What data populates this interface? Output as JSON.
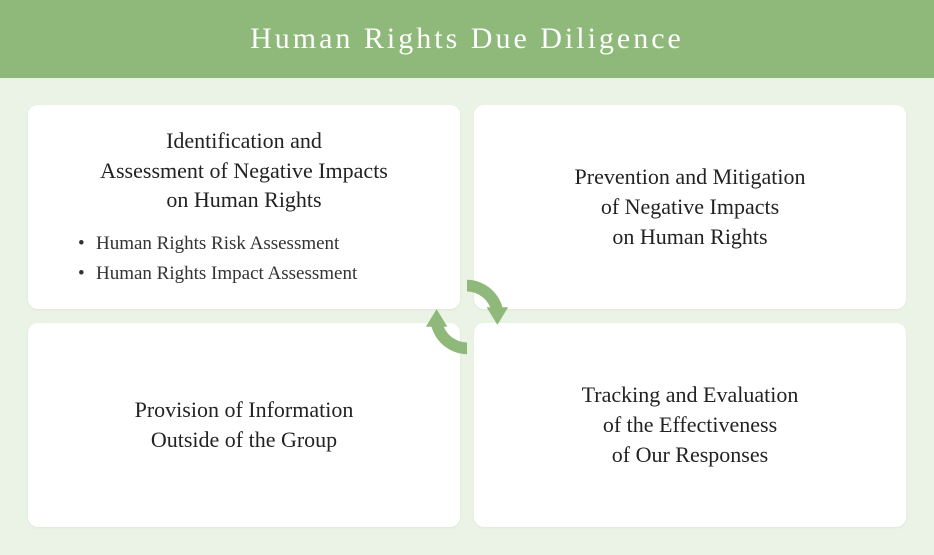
{
  "infographic": {
    "type": "infographic",
    "title": "Human Rights Due Diligence",
    "header_bg_color": "#8fb97a",
    "header_text_color": "#ffffff",
    "header_fontsize": 30,
    "header_letter_spacing": 3,
    "body_bg_color": "#eaf3e5",
    "card_bg_color": "#ffffff",
    "card_border_radius": 10,
    "card_title_fontsize": 22,
    "card_title_color": "#222222",
    "bullet_fontsize": 19,
    "bullet_color": "#333333",
    "gap": 14,
    "cycle_arrow_color": "#8fb97a",
    "cards": [
      {
        "title": "Identification and\nAssessment of Negative Impacts\non Human Rights",
        "bullets": [
          "Human Rights Risk Assessment",
          "Human Rights Impact Assessment"
        ]
      },
      {
        "title": "Prevention and Mitigation\nof Negative Impacts\non Human Rights",
        "bullets": []
      },
      {
        "title": "Provision of Information\nOutside of the Group",
        "bullets": []
      },
      {
        "title": "Tracking and Evaluation\nof the Effectiveness\nof Our Responses",
        "bullets": []
      }
    ]
  }
}
